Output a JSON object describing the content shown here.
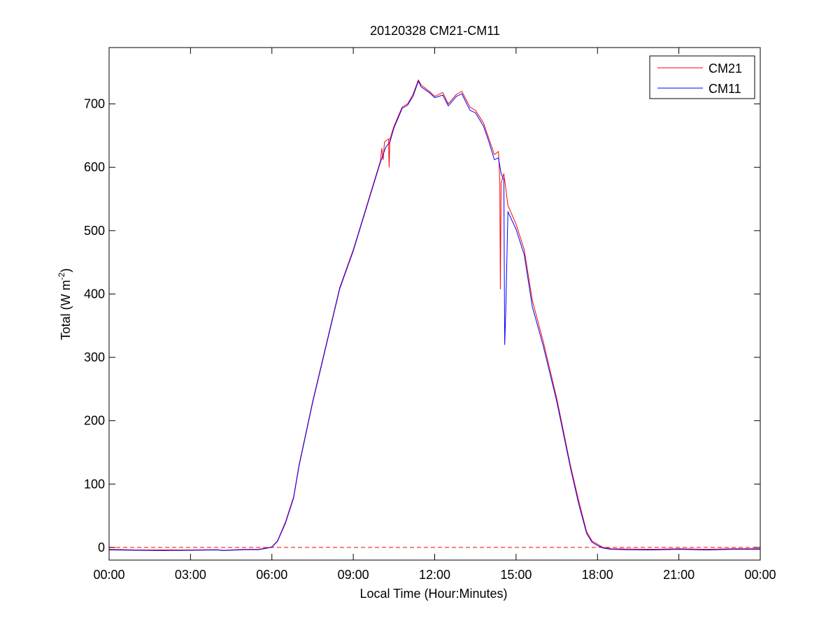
{
  "chart_data": {
    "type": "line",
    "title": "20120328 CM21-CM11",
    "xlabel": "Local Time (Hour:Minutes)",
    "ylabel": {
      "main": "Total (W m",
      "sup": "-2",
      "close": ")"
    },
    "x_unit": "hours",
    "xlim": [
      0,
      24
    ],
    "ylim": [
      -20,
      790
    ],
    "x_ticks": [
      {
        "v": 0,
        "label": "00:00"
      },
      {
        "v": 3,
        "label": "03:00"
      },
      {
        "v": 6,
        "label": "06:00"
      },
      {
        "v": 9,
        "label": "09:00"
      },
      {
        "v": 12,
        "label": "12:00"
      },
      {
        "v": 15,
        "label": "15:00"
      },
      {
        "v": 18,
        "label": "18:00"
      },
      {
        "v": 21,
        "label": "21:00"
      },
      {
        "v": 24,
        "label": "00:00"
      }
    ],
    "y_ticks": [
      {
        "v": 0,
        "label": "0"
      },
      {
        "v": 100,
        "label": "100"
      },
      {
        "v": 200,
        "label": "200"
      },
      {
        "v": 300,
        "label": "300"
      },
      {
        "v": 400,
        "label": "400"
      },
      {
        "v": 500,
        "label": "500"
      },
      {
        "v": 600,
        "label": "600"
      },
      {
        "v": 700,
        "label": "700"
      }
    ],
    "grid": false,
    "legend_position": "top-right",
    "zero_line": {
      "y": 0,
      "color": "#ff0000",
      "style": "dashed"
    },
    "series": [
      {
        "name": "CM21",
        "color": "#ff0000",
        "points": [
          [
            0,
            -3
          ],
          [
            1,
            -4
          ],
          [
            2,
            -4
          ],
          [
            3,
            -4
          ],
          [
            4,
            -3.5
          ],
          [
            4.2,
            -4.5
          ],
          [
            5,
            -3
          ],
          [
            5.5,
            -3
          ],
          [
            5.8,
            -1
          ],
          [
            6,
            1
          ],
          [
            6.2,
            10
          ],
          [
            6.5,
            40
          ],
          [
            6.8,
            80
          ],
          [
            7,
            130
          ],
          [
            7.5,
            230
          ],
          [
            8,
            320
          ],
          [
            8.5,
            410
          ],
          [
            9,
            470
          ],
          [
            9.5,
            540
          ],
          [
            10,
            610
          ],
          [
            10.05,
            630
          ],
          [
            10.1,
            612
          ],
          [
            10.15,
            640
          ],
          [
            10.3,
            645
          ],
          [
            10.32,
            600
          ],
          [
            10.35,
            645
          ],
          [
            10.5,
            665
          ],
          [
            10.8,
            695
          ],
          [
            11,
            700
          ],
          [
            11.2,
            715
          ],
          [
            11.4,
            738
          ],
          [
            11.5,
            730
          ],
          [
            11.8,
            720
          ],
          [
            12,
            712
          ],
          [
            12.3,
            718
          ],
          [
            12.5,
            700
          ],
          [
            12.8,
            715
          ],
          [
            13,
            720
          ],
          [
            13.3,
            695
          ],
          [
            13.5,
            690
          ],
          [
            13.8,
            670
          ],
          [
            14,
            645
          ],
          [
            14.2,
            620
          ],
          [
            14.35,
            625
          ],
          [
            14.4,
            580
          ],
          [
            14.42,
            408
          ],
          [
            14.45,
            575
          ],
          [
            14.55,
            590
          ],
          [
            14.7,
            540
          ],
          [
            15,
            510
          ],
          [
            15.3,
            470
          ],
          [
            15.6,
            390
          ],
          [
            16,
            325
          ],
          [
            16.5,
            235
          ],
          [
            17,
            130
          ],
          [
            17.3,
            75
          ],
          [
            17.6,
            25
          ],
          [
            17.8,
            10
          ],
          [
            18,
            5
          ],
          [
            18.2,
            0
          ],
          [
            18.5,
            -2
          ],
          [
            19,
            -2.5
          ],
          [
            20,
            -3
          ],
          [
            21,
            -2
          ],
          [
            22,
            -3
          ],
          [
            23,
            -2
          ],
          [
            24,
            -2
          ]
        ]
      },
      {
        "name": "CM11",
        "color": "#0000ff",
        "points": [
          [
            0,
            -4
          ],
          [
            1,
            -4.5
          ],
          [
            2,
            -5
          ],
          [
            3,
            -4.5
          ],
          [
            4,
            -4
          ],
          [
            4.2,
            -5
          ],
          [
            5,
            -3.5
          ],
          [
            5.5,
            -3.5
          ],
          [
            5.8,
            -1.5
          ],
          [
            6,
            0.5
          ],
          [
            6.2,
            9
          ],
          [
            6.5,
            38
          ],
          [
            6.8,
            78
          ],
          [
            7,
            128
          ],
          [
            7.5,
            228
          ],
          [
            8,
            318
          ],
          [
            8.5,
            408
          ],
          [
            9,
            468
          ],
          [
            9.5,
            538
          ],
          [
            10,
            608
          ],
          [
            10.2,
            632
          ],
          [
            10.35,
            640
          ],
          [
            10.5,
            662
          ],
          [
            10.8,
            693
          ],
          [
            11,
            698
          ],
          [
            11.2,
            712
          ],
          [
            11.4,
            736
          ],
          [
            11.5,
            727
          ],
          [
            11.8,
            718
          ],
          [
            12,
            710
          ],
          [
            12.3,
            714
          ],
          [
            12.5,
            697
          ],
          [
            12.8,
            712
          ],
          [
            13,
            716
          ],
          [
            13.3,
            690
          ],
          [
            13.5,
            686
          ],
          [
            13.8,
            665
          ],
          [
            14,
            640
          ],
          [
            14.2,
            612
          ],
          [
            14.35,
            615
          ],
          [
            14.45,
            590
          ],
          [
            14.55,
            580
          ],
          [
            14.58,
            320
          ],
          [
            14.62,
            372
          ],
          [
            14.7,
            530
          ],
          [
            15,
            502
          ],
          [
            15.3,
            462
          ],
          [
            15.6,
            380
          ],
          [
            16,
            318
          ],
          [
            16.5,
            230
          ],
          [
            17,
            126
          ],
          [
            17.3,
            70
          ],
          [
            17.6,
            22
          ],
          [
            17.8,
            8
          ],
          [
            18,
            3
          ],
          [
            18.2,
            -1
          ],
          [
            18.5,
            -3
          ],
          [
            19,
            -3.5
          ],
          [
            20,
            -4
          ],
          [
            21,
            -3
          ],
          [
            22,
            -4
          ],
          [
            23,
            -3
          ],
          [
            24,
            -3
          ]
        ]
      }
    ]
  }
}
